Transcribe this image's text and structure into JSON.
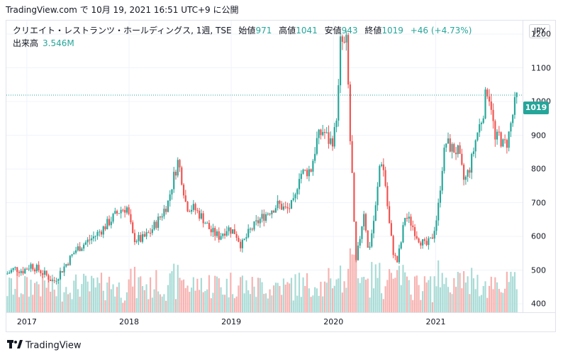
{
  "caption": "TradingView.com で 10月 19, 2021 16:51 UTC+9 に公開",
  "legend": {
    "title": "クリエイト・レストランツ・ホールディングス, 1週, TSE",
    "open_label": "始値",
    "open": "971",
    "high_label": "高値",
    "high": "1041",
    "low_label": "安値",
    "low": "943",
    "close_label": "終値",
    "close": "1019",
    "change": "+46 (+4.73%)"
  },
  "volume_legend": {
    "label": "出来高",
    "value": "3.546M"
  },
  "currency_button": "JPY",
  "last_price_tag": "1019",
  "brand": "TradingView",
  "colors": {
    "up": "#26a69a",
    "down": "#ef5350",
    "up_volume": "#a8dbd6",
    "down_volume": "#f6b2b0",
    "last_price_line": "#26a69a"
  },
  "chart_data": {
    "type": "candlestick",
    "interval": "1週",
    "xlim": [
      2016.8,
      2021.85
    ],
    "ylim": [
      375,
      1240
    ],
    "y_ticks": [
      400,
      500,
      600,
      700,
      800,
      900,
      1000,
      1100,
      1200
    ],
    "x_ticks": [
      {
        "label": "2017",
        "x": 2017.0
      },
      {
        "label": "2018",
        "x": 2018.0
      },
      {
        "label": "2019",
        "x": 2019.0
      },
      {
        "label": "2020",
        "x": 2020.0
      },
      {
        "label": "2021",
        "x": 2021.0
      }
    ],
    "last_price": 1019,
    "grid": true,
    "price_path": [
      [
        2016.8,
        488
      ],
      [
        2016.88,
        505
      ],
      [
        2016.96,
        498
      ],
      [
        2017.04,
        515
      ],
      [
        2017.12,
        500
      ],
      [
        2017.2,
        482
      ],
      [
        2017.26,
        465
      ],
      [
        2017.32,
        490
      ],
      [
        2017.4,
        525
      ],
      [
        2017.48,
        560
      ],
      [
        2017.56,
        578
      ],
      [
        2017.66,
        600
      ],
      [
        2017.76,
        628
      ],
      [
        2017.84,
        655
      ],
      [
        2017.92,
        680
      ],
      [
        2017.98,
        685
      ],
      [
        2018.04,
        595
      ],
      [
        2018.12,
        590
      ],
      [
        2018.2,
        610
      ],
      [
        2018.3,
        655
      ],
      [
        2018.38,
        700
      ],
      [
        2018.44,
        780
      ],
      [
        2018.48,
        825
      ],
      [
        2018.52,
        765
      ],
      [
        2018.56,
        690
      ],
      [
        2018.64,
        682
      ],
      [
        2018.72,
        655
      ],
      [
        2018.8,
        615
      ],
      [
        2018.88,
        600
      ],
      [
        2018.96,
        625
      ],
      [
        2019.04,
        612
      ],
      [
        2019.1,
        572
      ],
      [
        2019.18,
        615
      ],
      [
        2019.28,
        650
      ],
      [
        2019.38,
        678
      ],
      [
        2019.46,
        695
      ],
      [
        2019.54,
        678
      ],
      [
        2019.62,
        700
      ],
      [
        2019.66,
        785
      ],
      [
        2019.72,
        790
      ],
      [
        2019.78,
        800
      ],
      [
        2019.84,
        888
      ],
      [
        2019.9,
        915
      ],
      [
        2019.96,
        880
      ],
      [
        2020.0,
        890
      ],
      [
        2020.02,
        925
      ],
      [
        2020.05,
        1040
      ],
      [
        2020.07,
        1190
      ],
      [
        2020.1,
        1160
      ],
      [
        2020.13,
        1175
      ],
      [
        2020.16,
        900
      ],
      [
        2020.18,
        800
      ],
      [
        2020.2,
        640
      ],
      [
        2020.22,
        520
      ],
      [
        2020.26,
        600
      ],
      [
        2020.3,
        680
      ],
      [
        2020.34,
        550
      ],
      [
        2020.38,
        620
      ],
      [
        2020.42,
        700
      ],
      [
        2020.46,
        840
      ],
      [
        2020.5,
        780
      ],
      [
        2020.54,
        650
      ],
      [
        2020.58,
        560
      ],
      [
        2020.62,
        520
      ],
      [
        2020.66,
        580
      ],
      [
        2020.7,
        660
      ],
      [
        2020.76,
        640
      ],
      [
        2020.82,
        600
      ],
      [
        2020.9,
        570
      ],
      [
        2020.96,
        590
      ],
      [
        2021.02,
        670
      ],
      [
        2021.06,
        800
      ],
      [
        2021.1,
        880
      ],
      [
        2021.16,
        860
      ],
      [
        2021.22,
        850
      ],
      [
        2021.28,
        760
      ],
      [
        2021.34,
        810
      ],
      [
        2021.4,
        900
      ],
      [
        2021.46,
        960
      ],
      [
        2021.5,
        1040
      ],
      [
        2021.54,
        1000
      ],
      [
        2021.58,
        880
      ],
      [
        2021.62,
        900
      ],
      [
        2021.66,
        870
      ],
      [
        2021.7,
        880
      ],
      [
        2021.74,
        940
      ],
      [
        2021.78,
        1000
      ],
      [
        2021.8,
        1019
      ]
    ]
  }
}
